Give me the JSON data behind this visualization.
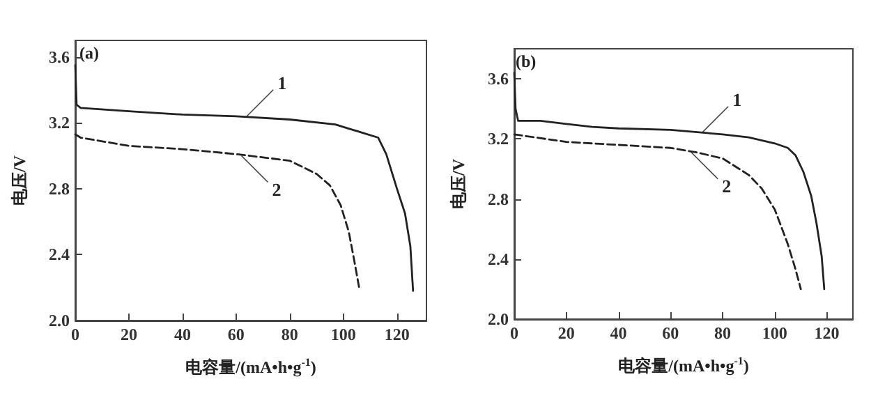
{
  "chart_data": [
    {
      "type": "line",
      "xlabel": "电容量/(mA•h•g$^{-1}$)",
      "ylabel": "电压/V",
      "xlim": [
        0,
        131
      ],
      "ylim": [
        2.0,
        3.7
      ],
      "xticks": [
        0,
        20,
        40,
        60,
        80,
        100,
        120
      ],
      "yticks": [
        {
          "value": 2,
          "label": "2.0"
        },
        2.4,
        2.8,
        3.2,
        3.6
      ],
      "grid": false,
      "marker": "none",
      "annotations": [
        "(a)",
        {
          "text": "1",
          "x": 64,
          "y": 3.24
        },
        {
          "text": "2",
          "x": 62,
          "y": 3.0
        }
      ],
      "series": [
        {
          "color": "#222222",
          "line_style": "solid",
          "x": [
            0,
            0.5,
            2,
            20,
            40,
            60,
            80,
            97,
            107,
            113,
            116,
            120,
            123,
            125,
            126
          ],
          "values": [
            3.55,
            3.31,
            3.29,
            3.27,
            3.25,
            3.24,
            3.22,
            3.19,
            3.14,
            3.11,
            3.01,
            2.8,
            2.65,
            2.45,
            2.18
          ]
        },
        {
          "color": "#222222",
          "line_style": "dashed",
          "x": [
            0,
            2,
            20,
            40,
            60,
            80,
            90,
            95,
            99,
            102,
            104,
            106
          ],
          "values": [
            3.13,
            3.11,
            3.06,
            3.04,
            3.01,
            2.97,
            2.89,
            2.82,
            2.7,
            2.54,
            2.37,
            2.19
          ]
        }
      ]
    },
    {
      "type": "line",
      "xlabel": "电容量/(mA•h•g$^{-1}$)",
      "ylabel": "电压/V",
      "xlim": [
        0,
        130
      ],
      "ylim": [
        2.0,
        3.8
      ],
      "xticks": [
        0,
        20,
        40,
        60,
        80,
        100,
        120
      ],
      "yticks": [
        {
          "value": 2,
          "label": "2.0"
        },
        2.4,
        2.8,
        3.2,
        3.6
      ],
      "grid": false,
      "marker": "none",
      "annotations": [
        "(b)",
        {
          "text": "1",
          "x": 72,
          "y": 3.24
        },
        {
          "text": "2",
          "x": 68,
          "y": 3.11
        }
      ],
      "series": [
        {
          "color": "#222222",
          "line_style": "solid",
          "x": [
            0,
            0.5,
            1.5,
            10,
            20,
            30,
            40,
            60,
            80,
            90,
            100,
            105,
            108,
            111,
            114,
            116,
            118,
            119
          ],
          "values": [
            3.64,
            3.4,
            3.32,
            3.32,
            3.3,
            3.28,
            3.27,
            3.26,
            3.23,
            3.21,
            3.17,
            3.14,
            3.09,
            2.98,
            2.82,
            2.64,
            2.42,
            2.2
          ]
        },
        {
          "color": "#222222",
          "line_style": "dashed",
          "x": [
            0,
            20,
            40,
            60,
            70,
            80,
            90,
            95,
            100,
            105,
            108,
            110
          ],
          "values": [
            3.23,
            3.18,
            3.16,
            3.14,
            3.11,
            3.07,
            2.96,
            2.87,
            2.73,
            2.5,
            2.33,
            2.2
          ]
        }
      ]
    }
  ]
}
